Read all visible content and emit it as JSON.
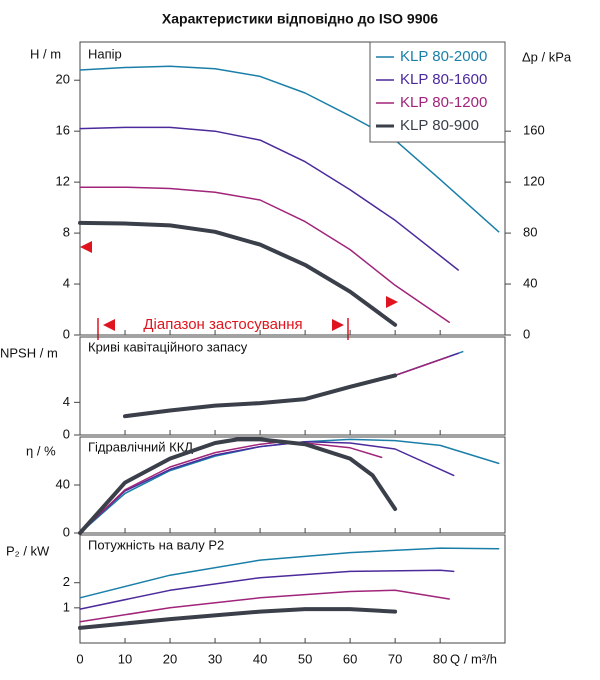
{
  "chart_data": [
    {
      "type": "line",
      "title": "Характеристики відповідно до ISO 9906",
      "label": "Напір",
      "ylabel": "H / m",
      "y2label": "Δp / kPa",
      "annotation": "Діапазон застосування",
      "xlim": [
        0,
        94.4
      ],
      "ylim": [
        0,
        23
      ],
      "yticks": [
        0,
        4,
        8,
        12,
        16,
        20
      ],
      "y2lim": [
        0,
        230
      ],
      "y2ticks": [
        0,
        40,
        80,
        120,
        160
      ],
      "legend": "top-right",
      "series": [
        {
          "name": "KLP 80-2000",
          "color": "#1a7fa8",
          "x": [
            0,
            10,
            20,
            30,
            40,
            50,
            60,
            70,
            80,
            93
          ],
          "values": [
            20.8,
            21.0,
            21.1,
            20.9,
            20.3,
            19.0,
            17.2,
            15.3,
            12.2,
            8.1
          ]
        },
        {
          "name": "KLP 80-1600",
          "color": "#4b2a9b",
          "x": [
            0,
            10,
            20,
            30,
            40,
            50,
            60,
            70,
            84
          ],
          "values": [
            16.2,
            16.3,
            16.3,
            16.0,
            15.3,
            13.6,
            11.4,
            9.0,
            5.1
          ]
        },
        {
          "name": "KLP 80-1200",
          "color": "#a0247a",
          "x": [
            0,
            10,
            20,
            30,
            40,
            50,
            60,
            70,
            82
          ],
          "values": [
            11.6,
            11.6,
            11.5,
            11.2,
            10.6,
            8.9,
            6.7,
            3.9,
            1.0
          ]
        },
        {
          "name": "KLP 80-900",
          "color": "#3a3f4a",
          "x": [
            0,
            10,
            20,
            30,
            40,
            50,
            60,
            70
          ],
          "values": [
            8.8,
            8.75,
            8.6,
            8.1,
            7.1,
            5.5,
            3.4,
            0.8
          ]
        }
      ]
    },
    {
      "type": "line",
      "label": "Криві кавітаційного запасу",
      "ylabel": "NPSH / m",
      "xlim": [
        0,
        94.4
      ],
      "ylim": [
        0,
        12
      ],
      "yticks": [
        0,
        4
      ],
      "series": [
        {
          "color": "#1a7fa8",
          "x": [
            70,
            85
          ],
          "values": [
            7.3,
            10.2
          ]
        },
        {
          "color": "#4b2a9b",
          "x": [
            70,
            84
          ],
          "values": [
            7.3,
            10.0
          ]
        },
        {
          "color": "#a0247a",
          "x": [
            70,
            82
          ],
          "values": [
            7.3,
            9.6
          ]
        },
        {
          "color": "#3a3f4a",
          "x": [
            10,
            20,
            30,
            40,
            50,
            60,
            70
          ],
          "values": [
            2.3,
            3.0,
            3.6,
            3.9,
            4.4,
            5.9,
            7.3
          ]
        }
      ]
    },
    {
      "type": "line",
      "label": "Гідравлічний ККД",
      "ylabel": "η / %",
      "xlim": [
        0,
        94.4
      ],
      "ylim": [
        0,
        80
      ],
      "yticks": [
        0,
        40
      ],
      "series": [
        {
          "color": "#1a7fa8",
          "x": [
            0,
            10,
            20,
            30,
            40,
            50,
            60,
            70,
            80,
            93
          ],
          "values": [
            0,
            33,
            52,
            64,
            72,
            76,
            78,
            77,
            73,
            58
          ]
        },
        {
          "color": "#4b2a9b",
          "x": [
            0,
            10,
            20,
            30,
            40,
            50,
            60,
            70,
            83
          ],
          "values": [
            0,
            35,
            53,
            65,
            72,
            76,
            75,
            70,
            48
          ]
        },
        {
          "color": "#a0247a",
          "x": [
            0,
            10,
            20,
            30,
            40,
            45,
            50,
            60,
            67
          ],
          "values": [
            0,
            36,
            55,
            67,
            74,
            76,
            75,
            71,
            63
          ]
        },
        {
          "color": "#3a3f4a",
          "x": [
            0,
            10,
            20,
            30,
            35,
            40,
            50,
            60,
            65,
            70
          ],
          "values": [
            0,
            42,
            62,
            75,
            78,
            78,
            74,
            62,
            48,
            20
          ]
        }
      ]
    },
    {
      "type": "line",
      "label": "Потужність на валу P2",
      "ylabel": "P₂ / kW",
      "xlabel": "Q / m³/h",
      "xlim": [
        0,
        94.4
      ],
      "ylim": [
        -0.4,
        3.9
      ],
      "yticks": [
        1,
        2
      ],
      "xticks": [
        0,
        10,
        20,
        30,
        40,
        50,
        60,
        70,
        80
      ],
      "series": [
        {
          "color": "#1a7fa8",
          "x": [
            0,
            20,
            40,
            60,
            80,
            93
          ],
          "values": [
            1.4,
            2.3,
            2.9,
            3.2,
            3.38,
            3.35
          ]
        },
        {
          "color": "#4b2a9b",
          "x": [
            0,
            20,
            40,
            60,
            80,
            83
          ],
          "values": [
            0.95,
            1.7,
            2.2,
            2.45,
            2.5,
            2.45
          ]
        },
        {
          "color": "#a0247a",
          "x": [
            0,
            20,
            40,
            60,
            70,
            82
          ],
          "values": [
            0.45,
            1.0,
            1.4,
            1.65,
            1.7,
            1.35
          ]
        },
        {
          "color": "#3a3f4a",
          "x": [
            0,
            20,
            40,
            50,
            60,
            70
          ],
          "values": [
            0.2,
            0.55,
            0.85,
            0.95,
            0.95,
            0.85
          ]
        }
      ]
    }
  ]
}
